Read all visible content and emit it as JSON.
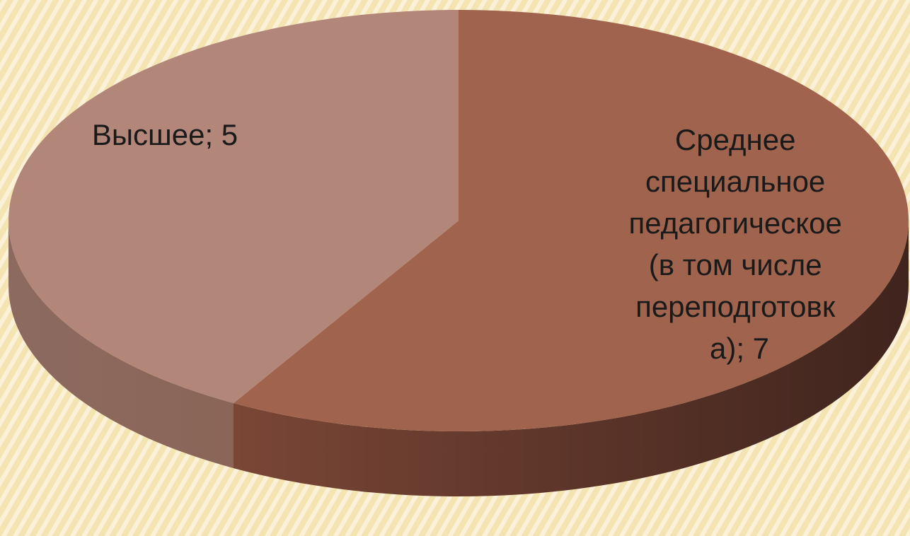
{
  "chart_data": {
    "type": "pie",
    "style": "3d",
    "slices": [
      {
        "label": "Среднее специальное педагогическое (в том числе переподготовка)",
        "value": 7,
        "color": "#a0634d"
      },
      {
        "label": "Высшее",
        "value": 5,
        "color": "#b2877a"
      }
    ],
    "data_labels": [
      {
        "lines": [
          "Среднее",
          "специальное",
          "педагогическое",
          "(в том числе",
          "переподготовк",
          "а); 7"
        ]
      },
      {
        "lines": [
          "Высшее; 5"
        ]
      }
    ],
    "legend": "none"
  }
}
